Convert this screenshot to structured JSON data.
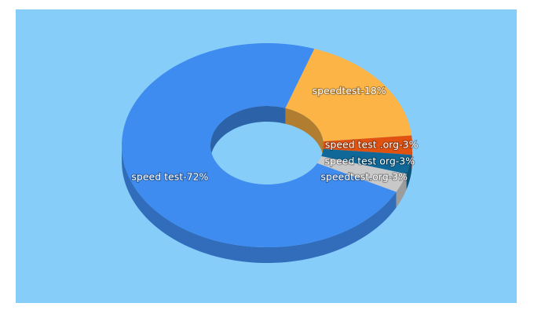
{
  "chart_data": {
    "type": "donut3d",
    "categories": [
      "speed test-72%",
      "speedtest-18%",
      "speed test .org-3%",
      "speed test org-3%",
      "speedtest.org-3%"
    ],
    "values": [
      72,
      18,
      3,
      3,
      3
    ],
    "colors": [
      "#3f8cf0",
      "#fdb446",
      "#e1510f",
      "#0f6897",
      "#c8c8c8"
    ],
    "background": "#87cdfa"
  }
}
